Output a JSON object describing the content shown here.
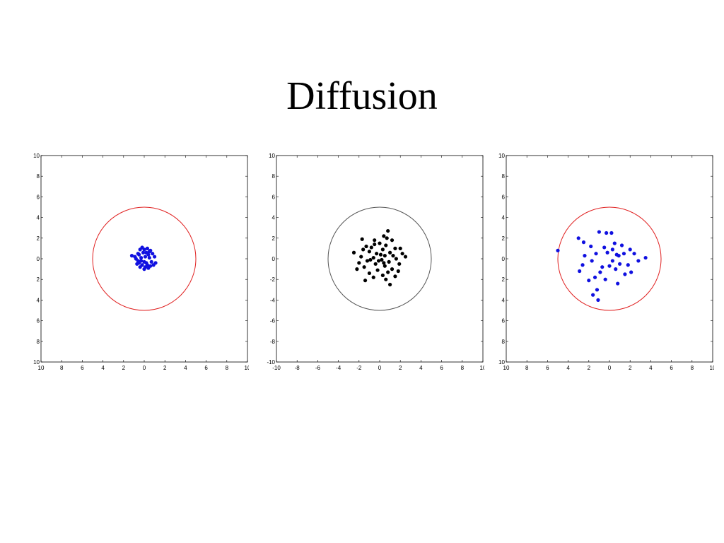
{
  "title": "Diffusion",
  "chart_data": [
    {
      "type": "scatter",
      "xlim": [
        -10,
        10
      ],
      "ylim": [
        -10,
        10
      ],
      "x_ticks": [
        -10,
        -8,
        -6,
        -4,
        -2,
        0,
        2,
        4,
        6,
        8,
        10
      ],
      "y_ticks": [
        -10,
        -8,
        -6,
        -4,
        -2,
        0,
        2,
        4,
        6,
        8,
        10
      ],
      "x_tick_labels": [
        "10",
        "8",
        "6",
        "4",
        "2",
        "0",
        "2",
        "4",
        "6",
        "8",
        "10"
      ],
      "y_tick_labels": [
        "10",
        "8",
        "6",
        "4",
        "2",
        "0",
        "2",
        "4",
        "6",
        "8",
        "10"
      ],
      "circle": {
        "center": [
          0,
          0
        ],
        "radius": 5,
        "color": "#e02020"
      },
      "point_color": "#1010e0",
      "points": [
        [
          -0.2,
          1.1
        ],
        [
          0.3,
          1.0
        ],
        [
          0.6,
          0.8
        ],
        [
          -0.6,
          0.5
        ],
        [
          -1.2,
          0.3
        ],
        [
          -0.9,
          0.2
        ],
        [
          -0.5,
          0.4
        ],
        [
          0.8,
          0.5
        ],
        [
          1.0,
          0.2
        ],
        [
          0.7,
          -0.3
        ],
        [
          0.9,
          -0.6
        ],
        [
          0.4,
          -0.9
        ],
        [
          0.0,
          -1.0
        ],
        [
          -0.4,
          -0.8
        ],
        [
          -0.7,
          -0.5
        ],
        [
          -0.3,
          -0.2
        ],
        [
          0.2,
          -0.4
        ],
        [
          0.5,
          0.1
        ],
        [
          -0.1,
          0.6
        ],
        [
          0.1,
          0.2
        ],
        [
          -0.6,
          -0.2
        ],
        [
          0.3,
          -0.6
        ],
        [
          -0.2,
          -0.6
        ],
        [
          0.6,
          -0.7
        ],
        [
          -0.8,
          0.0
        ],
        [
          0.2,
          0.6
        ],
        [
          -0.4,
          0.9
        ],
        [
          0.0,
          -0.3
        ],
        [
          0.4,
          0.4
        ],
        [
          -0.3,
          0.1
        ],
        [
          1.1,
          -0.4
        ],
        [
          0.1,
          -0.8
        ],
        [
          -0.5,
          -0.4
        ],
        [
          0.5,
          0.7
        ],
        [
          0.0,
          0.9
        ]
      ]
    },
    {
      "type": "scatter",
      "xlim": [
        -10,
        10
      ],
      "ylim": [
        -10,
        10
      ],
      "x_ticks": [
        -10,
        -8,
        -6,
        -4,
        -2,
        0,
        2,
        4,
        6,
        8,
        10
      ],
      "y_ticks": [
        -10,
        -8,
        -6,
        -4,
        -2,
        0,
        2,
        4,
        6,
        8,
        10
      ],
      "x_tick_labels": [
        "-10",
        "-8",
        "-6",
        "-4",
        "-2",
        "0",
        "2",
        "4",
        "6",
        "8",
        "10"
      ],
      "y_tick_labels": [
        "-10",
        "-8",
        "-6",
        "-4",
        "-2",
        "0",
        "2",
        "4",
        "6",
        "8",
        "10"
      ],
      "circle": {
        "center": [
          0,
          0
        ],
        "radius": 5,
        "color": "#555555"
      },
      "point_color": "#000000",
      "points": [
        [
          0.8,
          2.7
        ],
        [
          0.4,
          2.2
        ],
        [
          0.7,
          2.0
        ],
        [
          -1.7,
          1.9
        ],
        [
          -0.5,
          1.8
        ],
        [
          1.2,
          1.8
        ],
        [
          0.0,
          1.5
        ],
        [
          -1.3,
          1.2
        ],
        [
          0.6,
          1.3
        ],
        [
          1.5,
          1.0
        ],
        [
          -0.8,
          1.1
        ],
        [
          0.3,
          0.9
        ],
        [
          -2.5,
          0.6
        ],
        [
          -1.0,
          0.7
        ],
        [
          2.2,
          0.5
        ],
        [
          1.0,
          0.6
        ],
        [
          -0.3,
          0.5
        ],
        [
          0.5,
          0.3
        ],
        [
          2.5,
          0.2
        ],
        [
          -1.8,
          0.2
        ],
        [
          -0.6,
          0.1
        ],
        [
          1.6,
          0.0
        ],
        [
          0.2,
          -0.1
        ],
        [
          -1.2,
          -0.2
        ],
        [
          0.9,
          -0.3
        ],
        [
          -2.0,
          -0.4
        ],
        [
          -0.4,
          -0.5
        ],
        [
          1.9,
          -0.5
        ],
        [
          0.5,
          -0.7
        ],
        [
          -1.5,
          -0.8
        ],
        [
          1.2,
          -1.0
        ],
        [
          -0.2,
          -1.1
        ],
        [
          0.8,
          -1.3
        ],
        [
          -1.0,
          -1.4
        ],
        [
          0.3,
          -1.6
        ],
        [
          1.5,
          -1.7
        ],
        [
          -0.6,
          -1.8
        ],
        [
          -1.4,
          -2.1
        ],
        [
          0.6,
          -2.0
        ],
        [
          1.0,
          -2.5
        ],
        [
          -0.1,
          -0.2
        ],
        [
          0.1,
          0.4
        ],
        [
          -0.9,
          -0.1
        ],
        [
          1.3,
          0.3
        ],
        [
          -1.6,
          0.9
        ],
        [
          0.4,
          -0.4
        ],
        [
          2.0,
          1.0
        ],
        [
          -2.2,
          -1.0
        ],
        [
          -0.5,
          1.4
        ],
        [
          1.8,
          -1.2
        ]
      ]
    },
    {
      "type": "scatter",
      "xlim": [
        -10,
        10
      ],
      "ylim": [
        -10,
        10
      ],
      "x_ticks": [
        -10,
        -8,
        -6,
        -4,
        -2,
        0,
        2,
        4,
        6,
        8,
        10
      ],
      "y_ticks": [
        -10,
        -8,
        -6,
        -4,
        -2,
        0,
        2,
        4,
        6,
        8,
        10
      ],
      "x_tick_labels": [
        "10",
        "8",
        "6",
        "4",
        "2",
        "0",
        "2",
        "4",
        "6",
        "8",
        "10"
      ],
      "y_tick_labels": [
        "10",
        "8",
        "6",
        "4",
        "2",
        "0",
        "2",
        "4",
        "6",
        "8",
        "10"
      ],
      "circle": {
        "center": [
          0,
          0
        ],
        "radius": 5,
        "color": "#e02020"
      },
      "point_color": "#1010e0",
      "points": [
        [
          -5.0,
          0.8
        ],
        [
          -3.0,
          2.0
        ],
        [
          -2.5,
          1.6
        ],
        [
          -1.0,
          2.6
        ],
        [
          -0.3,
          2.5
        ],
        [
          0.2,
          2.5
        ],
        [
          -1.8,
          1.2
        ],
        [
          0.5,
          1.5
        ],
        [
          1.2,
          1.3
        ],
        [
          2.0,
          0.9
        ],
        [
          3.5,
          0.1
        ],
        [
          2.8,
          -0.2
        ],
        [
          1.8,
          -0.6
        ],
        [
          1.5,
          -1.5
        ],
        [
          0.8,
          -2.4
        ],
        [
          -0.4,
          -2.0
        ],
        [
          -1.2,
          -3.0
        ],
        [
          -2.0,
          -2.1
        ],
        [
          -1.6,
          -3.5
        ],
        [
          -1.1,
          -4.0
        ],
        [
          -2.6,
          -0.6
        ],
        [
          -2.4,
          0.3
        ],
        [
          -1.3,
          0.5
        ],
        [
          -0.7,
          -0.8
        ],
        [
          0.3,
          -0.2
        ],
        [
          0.9,
          0.3
        ],
        [
          -0.2,
          0.6
        ],
        [
          0.6,
          -1.0
        ],
        [
          -0.9,
          -1.3
        ],
        [
          1.4,
          0.5
        ],
        [
          0.0,
          -0.7
        ],
        [
          -1.7,
          -0.2
        ],
        [
          2.4,
          0.5
        ],
        [
          1.0,
          -0.5
        ],
        [
          -0.5,
          1.1
        ],
        [
          0.3,
          0.9
        ],
        [
          -1.4,
          -1.8
        ],
        [
          2.1,
          -1.3
        ],
        [
          -2.9,
          -1.2
        ],
        [
          0.7,
          0.4
        ]
      ]
    }
  ]
}
